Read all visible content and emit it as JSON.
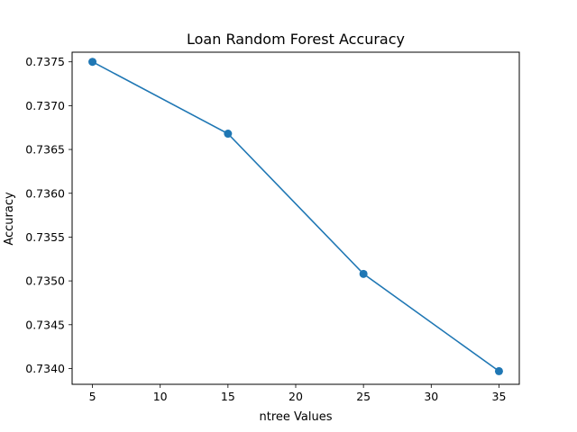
{
  "chart_data": {
    "type": "line",
    "title": "Loan Random Forest Accuracy",
    "xlabel": "ntree Values",
    "ylabel": "Accuracy",
    "x": [
      5,
      15,
      25,
      35
    ],
    "series": [
      {
        "values": [
          0.7375,
          0.73668,
          0.73508,
          0.73397
        ],
        "color": "#1f77b4",
        "marker": "circle"
      }
    ],
    "xlim": [
      3.5,
      36.5
    ],
    "ylim": [
      0.73382,
      0.73761
    ],
    "xticks": [
      5,
      10,
      15,
      20,
      25,
      30,
      35
    ],
    "yticks": [
      0.734,
      0.7345,
      0.735,
      0.7355,
      0.736,
      0.7365,
      0.737,
      0.7375
    ],
    "ytick_labels": [
      "0.7340",
      "0.7345",
      "0.7350",
      "0.7355",
      "0.7360",
      "0.7365",
      "0.7370",
      "0.7375"
    ],
    "grid": false,
    "legend": "none"
  }
}
